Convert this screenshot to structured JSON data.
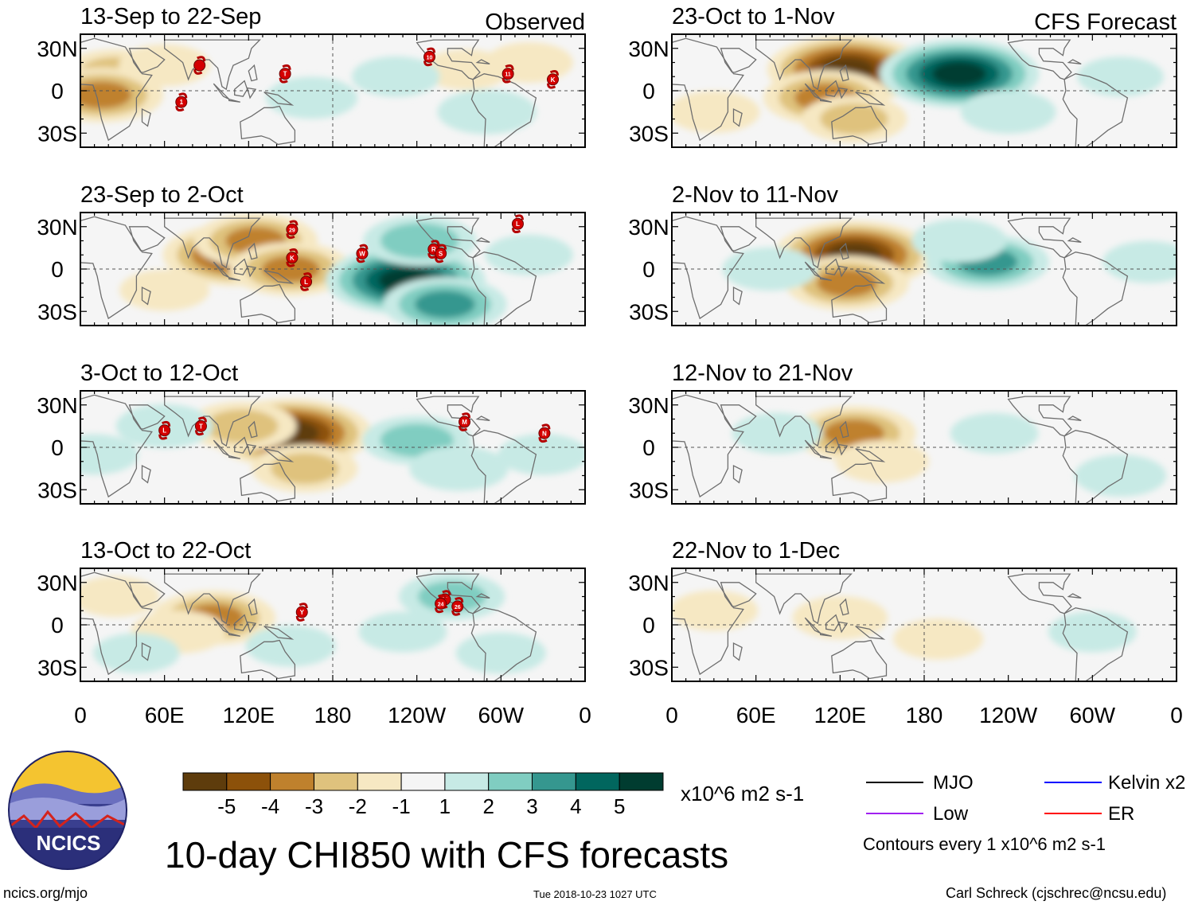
{
  "chart_data": {
    "type": "heatmap",
    "title": "10-day CHI850 with CFS forecasts",
    "observed_label": "Observed",
    "forecast_label": "CFS Forecast",
    "y_ticks": [
      "30N",
      "0",
      "30S"
    ],
    "x_ticks": [
      "0",
      "60E",
      "120E",
      "180",
      "120W",
      "60W",
      "0"
    ],
    "panels": [
      {
        "period": "13-Sep to 22-Sep",
        "group": "observed",
        "anomalies": [
          {
            "lon": 25,
            "lat": 12,
            "value": -2.4
          },
          {
            "lon": 15,
            "lat": -3,
            "value": -3.2
          },
          {
            "lon": 60,
            "lat": 18,
            "value": -1.4
          },
          {
            "lon": 275,
            "lat": 15,
            "value": -1.2
          },
          {
            "lon": 290,
            "lat": -15,
            "value": 1.8
          },
          {
            "lon": 225,
            "lat": 10,
            "value": 1.2
          },
          {
            "lon": 165,
            "lat": -5,
            "value": 1.4
          },
          {
            "lon": 320,
            "lat": 20,
            "value": -1.2
          }
        ],
        "storms": [
          {
            "id": "1",
            "lon": 72,
            "lat": -8
          },
          {
            "id": "",
            "lon": 85,
            "lat": 18
          },
          {
            "id": "T",
            "lon": 146,
            "lat": 12
          },
          {
            "id": "10",
            "lon": 249,
            "lat": 24
          },
          {
            "id": "11",
            "lon": 305,
            "lat": 12
          },
          {
            "id": "K",
            "lon": 337,
            "lat": 8
          }
        ]
      },
      {
        "period": "23-Sep to 2-Oct",
        "group": "observed",
        "anomalies": [
          {
            "lon": 110,
            "lat": 10,
            "value": -4.3
          },
          {
            "lon": 125,
            "lat": 20,
            "value": -3.2
          },
          {
            "lon": 150,
            "lat": 0,
            "value": -3.1
          },
          {
            "lon": 60,
            "lat": -15,
            "value": -1.3
          },
          {
            "lon": 232,
            "lat": -8,
            "value": 5.2
          },
          {
            "lon": 260,
            "lat": -25,
            "value": 3.2
          },
          {
            "lon": 242,
            "lat": 20,
            "value": 2.6
          },
          {
            "lon": 320,
            "lat": 10,
            "value": 1.2
          }
        ],
        "storms": [
          {
            "id": "29",
            "lon": 151,
            "lat": 28
          },
          {
            "id": "K",
            "lon": 151,
            "lat": 8
          },
          {
            "id": "L",
            "lon": 161,
            "lat": -9
          },
          {
            "id": "W",
            "lon": 201,
            "lat": 11
          },
          {
            "id": "R",
            "lon": 252,
            "lat": 14
          },
          {
            "id": "S",
            "lon": 257,
            "lat": 11
          },
          {
            "id": "L",
            "lon": 312,
            "lat": 32
          }
        ]
      },
      {
        "period": "3-Oct to 12-Oct",
        "group": "observed",
        "anomalies": [
          {
            "lon": 150,
            "lat": 10,
            "value": -5.3
          },
          {
            "lon": 115,
            "lat": 15,
            "value": -2.4
          },
          {
            "lon": 160,
            "lat": -15,
            "value": -2.2
          },
          {
            "lon": 60,
            "lat": 15,
            "value": 1.7
          },
          {
            "lon": 10,
            "lat": -5,
            "value": 1.2
          },
          {
            "lon": 240,
            "lat": 5,
            "value": 2.4
          },
          {
            "lon": 270,
            "lat": -15,
            "value": 1.8
          },
          {
            "lon": 330,
            "lat": -5,
            "value": 1.3
          }
        ],
        "storms": [
          {
            "id": "L",
            "lon": 60,
            "lat": 12
          },
          {
            "id": "T",
            "lon": 86,
            "lat": 15
          },
          {
            "id": "M",
            "lon": 274,
            "lat": 18
          },
          {
            "id": "N",
            "lon": 331,
            "lat": 10
          }
        ]
      },
      {
        "period": "13-Oct to 22-Oct",
        "group": "observed",
        "anomalies": [
          {
            "lon": 95,
            "lat": 5,
            "value": -3.2
          },
          {
            "lon": 70,
            "lat": -5,
            "value": -1.6
          },
          {
            "lon": 25,
            "lat": 20,
            "value": -1.2
          },
          {
            "lon": 150,
            "lat": -15,
            "value": 1.3
          },
          {
            "lon": 265,
            "lat": 20,
            "value": 2.2
          },
          {
            "lon": 230,
            "lat": -5,
            "value": 1.2
          },
          {
            "lon": 300,
            "lat": -20,
            "value": 1.3
          },
          {
            "lon": 40,
            "lat": -20,
            "value": 1.1
          }
        ],
        "storms": [
          {
            "id": "Y",
            "lon": 158,
            "lat": 9
          },
          {
            "id": "T",
            "lon": 260,
            "lat": 18
          },
          {
            "id": "24",
            "lon": 257,
            "lat": 15
          },
          {
            "id": "26",
            "lon": 269,
            "lat": 13
          }
        ]
      },
      {
        "period": "23-Oct to 1-Nov",
        "group": "forecast",
        "anomalies": [
          {
            "lon": 125,
            "lat": 15,
            "value": -5.2
          },
          {
            "lon": 110,
            "lat": -5,
            "value": -3.3
          },
          {
            "lon": 130,
            "lat": -20,
            "value": -2.2
          },
          {
            "lon": 205,
            "lat": 12,
            "value": 5.2
          },
          {
            "lon": 240,
            "lat": -15,
            "value": 1.6
          },
          {
            "lon": 30,
            "lat": -15,
            "value": -1.4
          },
          {
            "lon": 320,
            "lat": 10,
            "value": 1.1
          }
        ],
        "storms": []
      },
      {
        "period": "2-Nov to 11-Nov",
        "group": "forecast",
        "anomalies": [
          {
            "lon": 130,
            "lat": 10,
            "value": -5.2
          },
          {
            "lon": 125,
            "lat": -10,
            "value": -3.2
          },
          {
            "lon": 225,
            "lat": 5,
            "value": 3.2
          },
          {
            "lon": 205,
            "lat": 20,
            "value": 1.6
          },
          {
            "lon": 70,
            "lat": 0,
            "value": 1.6
          },
          {
            "lon": 340,
            "lat": 5,
            "value": 1.4
          }
        ],
        "storms": []
      },
      {
        "period": "12-Nov to 21-Nov",
        "group": "forecast",
        "anomalies": [
          {
            "lon": 130,
            "lat": 10,
            "value": -3.2
          },
          {
            "lon": 150,
            "lat": -10,
            "value": -1.5
          },
          {
            "lon": 75,
            "lat": 10,
            "value": 1.3
          },
          {
            "lon": 230,
            "lat": 10,
            "value": 1.2
          },
          {
            "lon": 320,
            "lat": -20,
            "value": 1.4
          }
        ],
        "storms": []
      },
      {
        "period": "22-Nov to 1-Dec",
        "group": "forecast",
        "anomalies": [
          {
            "lon": 120,
            "lat": 5,
            "value": -1.6
          },
          {
            "lon": 30,
            "lat": 10,
            "value": -1.2
          },
          {
            "lon": 190,
            "lat": -10,
            "value": -1.3
          },
          {
            "lon": 300,
            "lat": -5,
            "value": 1.2
          }
        ],
        "storms": []
      }
    ],
    "colorbar": {
      "colors": [
        "#5e3c0c",
        "#8c510a",
        "#bf812d",
        "#dfc27d",
        "#f6e8c3",
        "#f5f5f5",
        "#c7eae5",
        "#80cdc1",
        "#35978f",
        "#01665e",
        "#003c30"
      ],
      "tick_labels": [
        "-5",
        "-4",
        "-3",
        "-2",
        "-1",
        "1",
        "2",
        "3",
        "4",
        "5"
      ],
      "units": "x10^6 m2 s-1"
    },
    "legend": {
      "items": [
        {
          "name": "MJO",
          "color": "#000000"
        },
        {
          "name": "Kelvin x2",
          "color": "#0000ff"
        },
        {
          "name": "Low",
          "color": "#a020f0"
        },
        {
          "name": "ER",
          "color": "#ff0000"
        }
      ],
      "contour_note": "Contours every 1 x10^6 m2 s-1"
    }
  },
  "logo": {
    "text": "NCICS"
  },
  "footer": {
    "site": "ncics.org/mjo",
    "timestamp": "Tue 2018-10-23 1027 UTC",
    "credit": "Carl Schreck (cjschrec@ncsu.edu)"
  }
}
